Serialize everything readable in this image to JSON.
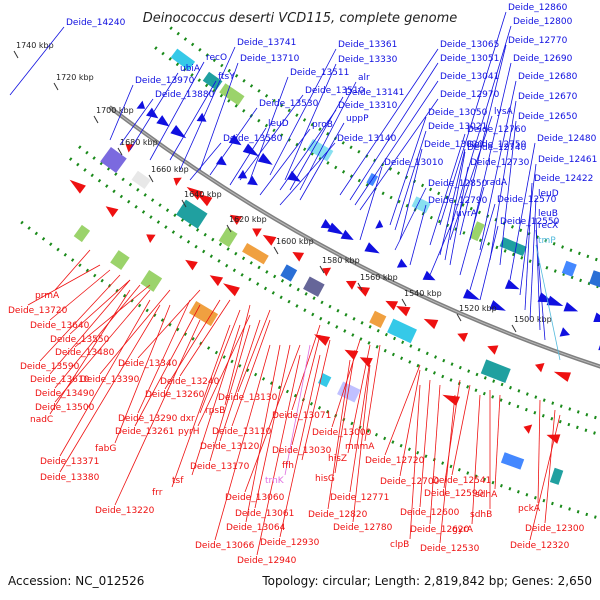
{
  "title": "Deinococcus deserti VCD115, complete genome",
  "accession": "Accession: NC_012526",
  "topology": "Topology: circular; Length: 2,819,842 bp; Genes: 2,650",
  "colors": {
    "forward": "#1010e0",
    "reverse": "#ee1111",
    "rna": "#e070e0",
    "trna": "#33bbdd",
    "backbone": "#808080",
    "gc_dots": "#1a8a1a"
  },
  "ticks": [
    "1740 kbp",
    "1720 kbp",
    "1700 kbp",
    "1680 kbp",
    "1660 kbp",
    "1640 kbp",
    "1620 kbp",
    "1600 kbp",
    "1580 kbp",
    "1560 kbp",
    "1540 kbp",
    "1520 kbp",
    "1500 kbp"
  ],
  "top_labels": [
    {
      "t": "Deide_14240",
      "c": "blue"
    },
    {
      "t": "Deide_13741",
      "c": "blue"
    },
    {
      "t": "Deide_13361",
      "c": "blue"
    },
    {
      "t": "Deide_13065",
      "c": "blue"
    },
    {
      "t": "Deide_12860",
      "c": "blue"
    },
    {
      "t": "recO",
      "c": "blue"
    },
    {
      "t": "Deide_13710",
      "c": "blue"
    },
    {
      "t": "Deide_13330",
      "c": "blue"
    },
    {
      "t": "Deide_13051",
      "c": "blue"
    },
    {
      "t": "Deide_12800",
      "c": "blue"
    },
    {
      "t": "ubiA",
      "c": "blue"
    },
    {
      "t": "ftsY",
      "c": "blue"
    },
    {
      "t": "Deide_13511",
      "c": "blue"
    },
    {
      "t": "alr",
      "c": "blue"
    },
    {
      "t": "Deide_12770",
      "c": "blue"
    },
    {
      "t": "Deide_13970",
      "c": "blue"
    },
    {
      "t": "Deide_13510",
      "c": "blue"
    },
    {
      "t": "Deide_13141",
      "c": "blue"
    },
    {
      "t": "Deide_13041",
      "c": "blue"
    },
    {
      "t": "Deide_12690",
      "c": "blue"
    },
    {
      "t": "Deide_13880",
      "c": "blue"
    },
    {
      "t": "Deide_13530",
      "c": "blue"
    },
    {
      "t": "Deide_13310",
      "c": "blue"
    },
    {
      "t": "Deide_12970",
      "c": "blue"
    },
    {
      "t": "lysA",
      "c": "blue"
    },
    {
      "t": "Deide_12680",
      "c": "blue"
    },
    {
      "t": "uppP",
      "c": "blue"
    },
    {
      "t": "Deide_13050",
      "c": "blue"
    },
    {
      "t": "Deide_12670",
      "c": "blue"
    },
    {
      "t": "leuD",
      "c": "blue"
    },
    {
      "t": "proB",
      "c": "blue"
    },
    {
      "t": "Deide_13021",
      "c": "blue"
    },
    {
      "t": "Deide_12760",
      "c": "blue"
    },
    {
      "t": "Deide_12650",
      "c": "blue"
    },
    {
      "t": "Deide_13580",
      "c": "blue"
    },
    {
      "t": "Deide_13140",
      "c": "blue"
    },
    {
      "t": "Deide_13020",
      "c": "blue"
    },
    {
      "t": "Deide_12750",
      "c": "blue"
    },
    {
      "t": "Deide_12480",
      "c": "blue"
    },
    {
      "t": "Deide_12740",
      "c": "blue"
    },
    {
      "t": "Deide_13010",
      "c": "blue"
    },
    {
      "t": "Deide_12730",
      "c": "blue"
    },
    {
      "t": "Deide_12461",
      "c": "blue"
    },
    {
      "t": "Deide_12850",
      "c": "blue"
    },
    {
      "t": "radA",
      "c": "blue"
    },
    {
      "t": "Deide_12422",
      "c": "blue"
    },
    {
      "t": "Deide_12790",
      "c": "blue"
    },
    {
      "t": "uvrA",
      "c": "blue"
    },
    {
      "t": "leuD",
      "c": "blue"
    },
    {
      "t": "Deide_12570",
      "c": "blue"
    },
    {
      "t": "leuB",
      "c": "blue"
    },
    {
      "t": "Deide_12550",
      "c": "blue"
    },
    {
      "t": "recX",
      "c": "blue"
    },
    {
      "t": "tmP",
      "c": "teal"
    }
  ],
  "bottom_labels": [
    {
      "t": "prmA",
      "c": "red"
    },
    {
      "t": "Deide_13720",
      "c": "red"
    },
    {
      "t": "Deide_13640",
      "c": "red"
    },
    {
      "t": "Deide_13550",
      "c": "red"
    },
    {
      "t": "Deide_13480",
      "c": "red"
    },
    {
      "t": "Deide_13340",
      "c": "red"
    },
    {
      "t": "Deide_13590",
      "c": "red"
    },
    {
      "t": "Deide_13610",
      "c": "red"
    },
    {
      "t": "Deide_13390",
      "c": "red"
    },
    {
      "t": "Deide_13240",
      "c": "red"
    },
    {
      "t": "Deide_13490",
      "c": "red"
    },
    {
      "t": "Deide_13260",
      "c": "red"
    },
    {
      "t": "Deide_13500",
      "c": "red"
    },
    {
      "t": "Deide_13130",
      "c": "red"
    },
    {
      "t": "nadC",
      "c": "red"
    },
    {
      "t": "rpsB",
      "c": "red"
    },
    {
      "t": "Deide_13290",
      "c": "red"
    },
    {
      "t": "dxr",
      "c": "red"
    },
    {
      "t": "Deide_13071",
      "c": "red"
    },
    {
      "t": "Deide_13261",
      "c": "red"
    },
    {
      "t": "pyrH",
      "c": "red"
    },
    {
      "t": "Deide_13110",
      "c": "red"
    },
    {
      "t": "Deide_13000",
      "c": "red"
    },
    {
      "t": "fabG",
      "c": "red"
    },
    {
      "t": "Deide_13120",
      "c": "red"
    },
    {
      "t": "mnmA",
      "c": "red"
    },
    {
      "t": "Deide_13030",
      "c": "red"
    },
    {
      "t": "hisZ",
      "c": "red"
    },
    {
      "t": "Deide_12720",
      "c": "red"
    },
    {
      "t": "Deide_13371",
      "c": "red"
    },
    {
      "t": "Deide_13170",
      "c": "red"
    },
    {
      "t": "ffh",
      "c": "red"
    },
    {
      "t": "Deide_13380",
      "c": "red"
    },
    {
      "t": "tsf",
      "c": "red"
    },
    {
      "t": "trnK",
      "c": "violet"
    },
    {
      "t": "hisG",
      "c": "red"
    },
    {
      "t": "Deide_12700",
      "c": "red"
    },
    {
      "t": "Deide_12541",
      "c": "red"
    },
    {
      "t": "frr",
      "c": "red"
    },
    {
      "t": "Deide_13060",
      "c": "red"
    },
    {
      "t": "Deide_12771",
      "c": "red"
    },
    {
      "t": "Deide_12590",
      "c": "red"
    },
    {
      "t": "sdhA",
      "c": "red"
    },
    {
      "t": "Deide_13220",
      "c": "red"
    },
    {
      "t": "Deide_13061",
      "c": "red"
    },
    {
      "t": "Deide_12820",
      "c": "red"
    },
    {
      "t": "Deide_12600",
      "c": "red"
    },
    {
      "t": "pckA",
      "c": "red"
    },
    {
      "t": "Deide_13064",
      "c": "red"
    },
    {
      "t": "Deide_12780",
      "c": "red"
    },
    {
      "t": "sdhB",
      "c": "red"
    },
    {
      "t": "Deide_12620",
      "c": "red"
    },
    {
      "t": "gyrA",
      "c": "red"
    },
    {
      "t": "Deide_12300",
      "c": "red"
    },
    {
      "t": "Deide_13066",
      "c": "red"
    },
    {
      "t": "Deide_12930",
      "c": "red"
    },
    {
      "t": "clpB",
      "c": "red"
    },
    {
      "t": "Deide_12530",
      "c": "red"
    },
    {
      "t": "Deide_12320",
      "c": "red"
    },
    {
      "t": "Deide_12940",
      "c": "red"
    }
  ]
}
